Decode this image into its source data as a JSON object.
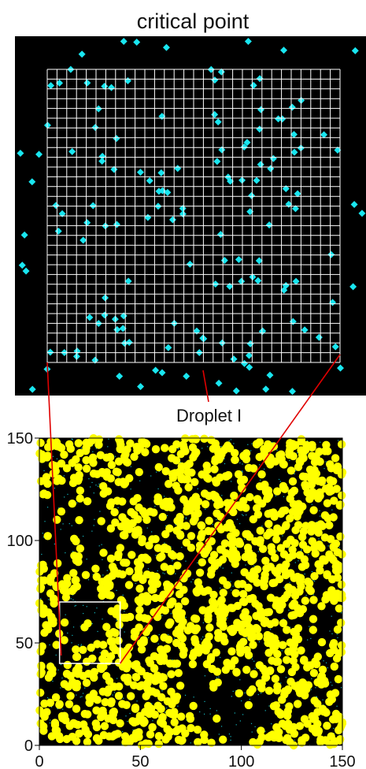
{
  "title": "critical point",
  "annotation": "Droplet I",
  "colors": {
    "background": "#000000",
    "lattice_particle": "#19e6f0",
    "cluster": "#ffff00",
    "grid": "#ffffff",
    "connector": "#e00000",
    "frame": "#ffffff"
  },
  "chart_data": {
    "type": "scatter",
    "title": "",
    "xlabel": "",
    "ylabel": "",
    "xlim": [
      0,
      150
    ],
    "ylim": [
      0,
      150
    ],
    "xticks": [
      "0",
      "50",
      "100",
      "150"
    ],
    "yticks": [
      "0",
      "50",
      "100",
      "150"
    ],
    "zoom_box": {
      "x": [
        10,
        40
      ],
      "y": [
        40,
        70
      ]
    }
  }
}
